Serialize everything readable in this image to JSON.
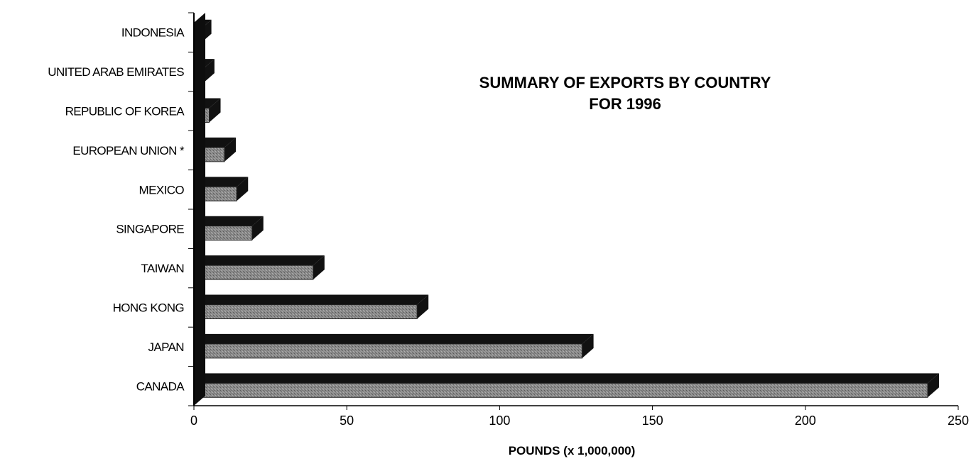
{
  "chart_data": {
    "type": "bar",
    "orientation": "horizontal",
    "title_lines": [
      "SUMMARY OF EXPORTS BY COUNTRY",
      "FOR 1996"
    ],
    "xlabel": "POUNDS (x 1,000,000)",
    "ylabel": "",
    "categories": [
      "CANADA",
      "JAPAN",
      "HONG KONG",
      "TAIWAN",
      "SINGAPORE",
      "MEXICO",
      "EUROPEAN UNION  *",
      "REPUBLIC OF KOREA",
      "UNITED ARAB EMIRATES",
      "INDONESIA"
    ],
    "values": [
      240,
      127,
      73,
      39,
      19,
      14,
      10,
      5,
      3,
      2
    ],
    "xlim": [
      0,
      250
    ],
    "xticks": [
      0,
      50,
      100,
      150,
      200,
      250
    ],
    "grid": false,
    "legend": "none",
    "colors": {
      "bar_face": "#8a8a8a",
      "bar_shadow": "#111111",
      "axis": "#000000"
    }
  }
}
